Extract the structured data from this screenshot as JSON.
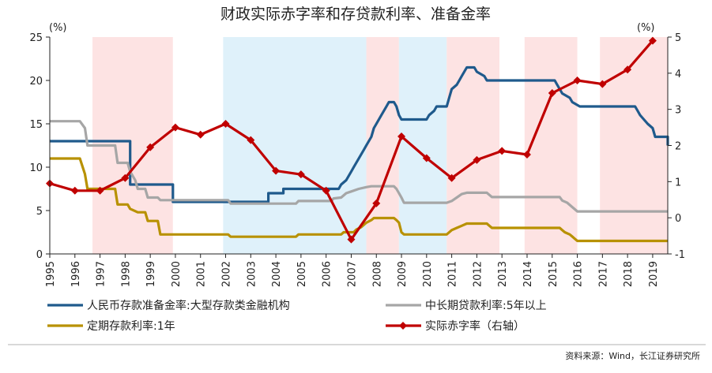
{
  "chart_data": {
    "type": "line",
    "title": "财政实际赤字率和存贷款利率、准备金率",
    "left_unit": "(%)",
    "right_unit": "(%)",
    "xlim": [
      1995,
      2019.6
    ],
    "ylim_left": [
      0,
      25
    ],
    "ylim_right": [
      -1,
      5
    ],
    "xticks": [
      "1995",
      "1996",
      "1997",
      "1998",
      "1999",
      "2000",
      "2001",
      "2002",
      "2003",
      "2004",
      "2005",
      "2006",
      "2007",
      "2008",
      "2009",
      "2010",
      "2011",
      "2012",
      "2013",
      "2014",
      "2015",
      "2016",
      "2017",
      "2018",
      "2019"
    ],
    "yticks_left": [
      "0",
      "5",
      "10",
      "15",
      "20",
      "25"
    ],
    "yticks_right": [
      "-1",
      "0",
      "1",
      "2",
      "3",
      "4",
      "5"
    ],
    "grid": false,
    "legend_position": "bottom",
    "shaded_periods": [
      {
        "start": 1996.7,
        "end": 1999.9,
        "color": "#fde3e3"
      },
      {
        "start": 2001.9,
        "end": 2007.6,
        "color": "#dff1fa"
      },
      {
        "start": 2007.6,
        "end": 2008.9,
        "color": "#fde3e3"
      },
      {
        "start": 2008.9,
        "end": 2010.8,
        "color": "#dff1fa"
      },
      {
        "start": 2010.8,
        "end": 2012.9,
        "color": "#fde3e3"
      },
      {
        "start": 2013.9,
        "end": 2016.0,
        "color": "#fde3e3"
      },
      {
        "start": 2016.9,
        "end": 2019.6,
        "color": "#fde3e3"
      }
    ],
    "series": [
      {
        "name": "人民币存款准备金率:大型存款类金融机构",
        "axis": "left",
        "color": "#1f5a8c",
        "marker": false,
        "points": [
          [
            1995,
            13
          ],
          [
            1998.2,
            13
          ],
          [
            1998.2,
            8
          ],
          [
            1999.9,
            8
          ],
          [
            1999.9,
            6
          ],
          [
            2003.7,
            6
          ],
          [
            2003.7,
            7
          ],
          [
            2004.3,
            7
          ],
          [
            2004.3,
            7.5
          ],
          [
            2006.5,
            7.5
          ],
          [
            2006.6,
            8
          ],
          [
            2006.8,
            8.5
          ],
          [
            2006.9,
            9
          ],
          [
            2007.0,
            9.5
          ],
          [
            2007.1,
            10
          ],
          [
            2007.2,
            10.5
          ],
          [
            2007.3,
            11
          ],
          [
            2007.4,
            11.5
          ],
          [
            2007.5,
            12
          ],
          [
            2007.6,
            12.5
          ],
          [
            2007.7,
            13
          ],
          [
            2007.8,
            13.5
          ],
          [
            2007.9,
            14.5
          ],
          [
            2008.0,
            15
          ],
          [
            2008.2,
            16
          ],
          [
            2008.4,
            17
          ],
          [
            2008.5,
            17.5
          ],
          [
            2008.7,
            17.5
          ],
          [
            2008.8,
            17
          ],
          [
            2008.9,
            16
          ],
          [
            2009.0,
            15.5
          ],
          [
            2010.0,
            15.5
          ],
          [
            2010.1,
            16
          ],
          [
            2010.3,
            16.5
          ],
          [
            2010.4,
            17
          ],
          [
            2010.8,
            17
          ],
          [
            2010.9,
            18
          ],
          [
            2011.0,
            19
          ],
          [
            2011.2,
            19.5
          ],
          [
            2011.3,
            20
          ],
          [
            2011.4,
            20.5
          ],
          [
            2011.5,
            21
          ],
          [
            2011.6,
            21.5
          ],
          [
            2011.9,
            21.5
          ],
          [
            2012.0,
            21
          ],
          [
            2012.3,
            20.5
          ],
          [
            2012.4,
            20
          ],
          [
            2015.1,
            20
          ],
          [
            2015.2,
            19.5
          ],
          [
            2015.4,
            18.5
          ],
          [
            2015.7,
            18
          ],
          [
            2015.8,
            17.5
          ],
          [
            2016.1,
            17
          ],
          [
            2018.3,
            17
          ],
          [
            2018.4,
            16.5
          ],
          [
            2018.5,
            16
          ],
          [
            2018.8,
            15
          ],
          [
            2019.0,
            14.5
          ],
          [
            2019.1,
            13.5
          ],
          [
            2019.7,
            13.5
          ],
          [
            2019.8,
            13
          ],
          [
            2020.0,
            12.5
          ],
          [
            2020.1,
            12.5
          ]
        ]
      },
      {
        "name": "中长期贷款利率:5年以上",
        "axis": "left",
        "color": "#a6a6a6",
        "marker": false,
        "points": [
          [
            1995,
            15.3
          ],
          [
            1996.2,
            15.3
          ],
          [
            1996.4,
            14.5
          ],
          [
            1996.5,
            12.5
          ],
          [
            1997.6,
            12.5
          ],
          [
            1997.7,
            10.5
          ],
          [
            1998.1,
            10.5
          ],
          [
            1998.2,
            9.5
          ],
          [
            1998.4,
            8.5
          ],
          [
            1998.5,
            7.5
          ],
          [
            1998.8,
            7.5
          ],
          [
            1998.9,
            6.5
          ],
          [
            1999.3,
            6.5
          ],
          [
            1999.4,
            6.2
          ],
          [
            2002.1,
            6.2
          ],
          [
            2002.2,
            5.8
          ],
          [
            2004.8,
            5.8
          ],
          [
            2004.9,
            6.1
          ],
          [
            2006.2,
            6.1
          ],
          [
            2006.3,
            6.4
          ],
          [
            2006.6,
            6.5
          ],
          [
            2006.8,
            7
          ],
          [
            2007.0,
            7.2
          ],
          [
            2007.3,
            7.5
          ],
          [
            2007.6,
            7.7
          ],
          [
            2007.8,
            7.8
          ],
          [
            2008.7,
            7.8
          ],
          [
            2008.8,
            7.5
          ],
          [
            2008.9,
            7
          ],
          [
            2009.0,
            6.5
          ],
          [
            2009.1,
            5.9
          ],
          [
            2010.8,
            5.9
          ],
          [
            2011.0,
            6.1
          ],
          [
            2011.2,
            6.5
          ],
          [
            2011.4,
            6.9
          ],
          [
            2011.6,
            7.05
          ],
          [
            2012.4,
            7.05
          ],
          [
            2012.5,
            6.8
          ],
          [
            2012.6,
            6.55
          ],
          [
            2015.3,
            6.55
          ],
          [
            2015.4,
            6.15
          ],
          [
            2015.6,
            5.9
          ],
          [
            2015.8,
            5.4
          ],
          [
            2016.0,
            4.9
          ],
          [
            2020.1,
            4.9
          ]
        ]
      },
      {
        "name": "定期存款利率:1年",
        "axis": "left",
        "color": "#b89100",
        "marker": false,
        "points": [
          [
            1995,
            11
          ],
          [
            1996.2,
            11
          ],
          [
            1996.4,
            9.2
          ],
          [
            1996.5,
            7.5
          ],
          [
            1997.6,
            7.5
          ],
          [
            1997.7,
            5.7
          ],
          [
            1998.1,
            5.7
          ],
          [
            1998.2,
            5.2
          ],
          [
            1998.5,
            4.8
          ],
          [
            1998.8,
            4.8
          ],
          [
            1998.9,
            3.8
          ],
          [
            1999.3,
            3.8
          ],
          [
            1999.4,
            2.25
          ],
          [
            2002.1,
            2.25
          ],
          [
            2002.2,
            1.98
          ],
          [
            2004.8,
            1.98
          ],
          [
            2004.9,
            2.25
          ],
          [
            2006.6,
            2.25
          ],
          [
            2006.7,
            2.5
          ],
          [
            2007.1,
            2.5
          ],
          [
            2007.2,
            2.8
          ],
          [
            2007.4,
            3.1
          ],
          [
            2007.6,
            3.6
          ],
          [
            2007.8,
            3.9
          ],
          [
            2007.9,
            4.14
          ],
          [
            2008.7,
            4.14
          ],
          [
            2008.8,
            3.9
          ],
          [
            2008.9,
            3.6
          ],
          [
            2009.0,
            2.5
          ],
          [
            2009.1,
            2.25
          ],
          [
            2010.8,
            2.25
          ],
          [
            2011.0,
            2.75
          ],
          [
            2011.2,
            3.0
          ],
          [
            2011.4,
            3.25
          ],
          [
            2011.6,
            3.5
          ],
          [
            2012.4,
            3.5
          ],
          [
            2012.5,
            3.25
          ],
          [
            2012.6,
            3.0
          ],
          [
            2015.3,
            3.0
          ],
          [
            2015.4,
            2.75
          ],
          [
            2015.5,
            2.5
          ],
          [
            2015.7,
            2.25
          ],
          [
            2015.8,
            2.0
          ],
          [
            2015.9,
            1.75
          ],
          [
            2016.0,
            1.5
          ],
          [
            2020.1,
            1.5
          ]
        ]
      },
      {
        "name": "实际赤字率（右轴）",
        "axis": "right",
        "color": "#c00000",
        "marker": true,
        "points": [
          [
            1995,
            0.95
          ],
          [
            1996,
            0.75
          ],
          [
            1997,
            0.75
          ],
          [
            1998,
            1.1
          ],
          [
            1999,
            1.95
          ],
          [
            2000,
            2.5
          ],
          [
            2001,
            2.3
          ],
          [
            2002,
            2.6
          ],
          [
            2003,
            2.15
          ],
          [
            2004,
            1.3
          ],
          [
            2005,
            1.2
          ],
          [
            2006,
            0.75
          ],
          [
            2007,
            -0.6
          ],
          [
            2008,
            0.4
          ],
          [
            2009,
            2.25
          ],
          [
            2010,
            1.65
          ],
          [
            2011,
            1.1
          ],
          [
            2012,
            1.6
          ],
          [
            2013,
            1.85
          ],
          [
            2014,
            1.75
          ],
          [
            2015,
            3.45
          ],
          [
            2016,
            3.8
          ],
          [
            2017,
            3.7
          ],
          [
            2018,
            4.1
          ],
          [
            2019,
            4.9
          ]
        ]
      }
    ]
  },
  "source_note": "资料来源：Wind，长江证券研究所"
}
